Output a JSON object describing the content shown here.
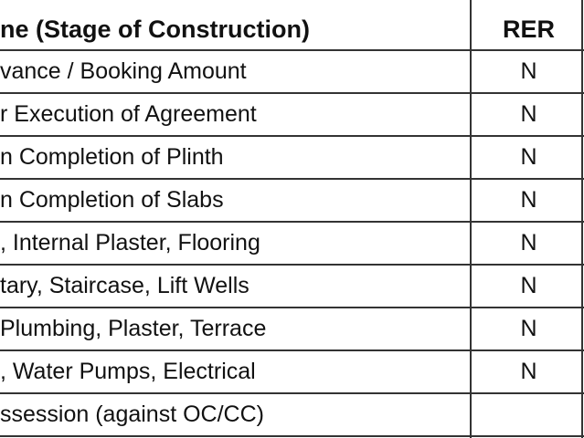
{
  "table": {
    "header": [
      "ne (Stage of Construction)",
      "RER"
    ],
    "rows": [
      [
        "vance / Booking Amount",
        "N"
      ],
      [
        "r Execution of Agreement",
        "N"
      ],
      [
        "n Completion of Plinth",
        "N"
      ],
      [
        "n Completion of Slabs",
        "N"
      ],
      [
        ", Internal Plaster, Flooring",
        "N"
      ],
      [
        "tary, Staircase, Lift Wells",
        "N"
      ],
      [
        "Plumbing, Plaster, Terrace",
        "N"
      ],
      [
        ", Water Pumps, Electrical",
        "N"
      ],
      [
        "ssession (against OC/CC)"
      ]
    ]
  }
}
